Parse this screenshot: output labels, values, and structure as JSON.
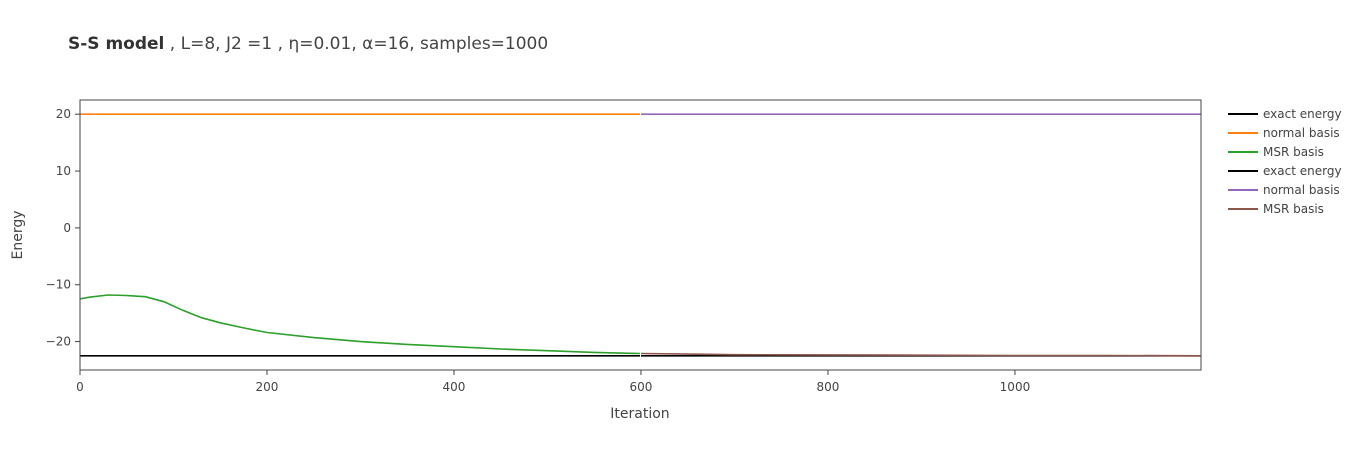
{
  "chart_data": {
    "type": "line",
    "title_bold": "S-S model",
    "title_rest": " , L=8, J2 =1 , η=0.01, α=16, samples=1000",
    "xlabel": "Iteration",
    "ylabel": "Energy",
    "xlim": [
      0,
      1199
    ],
    "ylim": [
      -25,
      22.5
    ],
    "x_ticks": [
      0,
      200,
      400,
      600,
      800,
      1000
    ],
    "y_ticks": [
      -20,
      -10,
      0,
      10,
      20
    ],
    "x_tick_labels": [
      "0",
      "200",
      "400",
      "600",
      "800",
      "1000"
    ],
    "y_tick_labels": [
      "−20",
      "−10",
      "0",
      "10",
      "20"
    ],
    "grid": false,
    "legend_position": "right",
    "series": [
      {
        "name": "exact energy",
        "color": "#000000",
        "x": [
          0,
          599
        ],
        "y": [
          -22.5,
          -22.5
        ]
      },
      {
        "name": "normal basis",
        "color": "#ff7f0e",
        "x": [
          0,
          599
        ],
        "y": [
          20,
          20
        ]
      },
      {
        "name": "MSR basis",
        "color": "#2ca02c",
        "x": [
          0,
          10,
          30,
          50,
          70,
          90,
          110,
          130,
          150,
          175,
          200,
          250,
          300,
          350,
          400,
          450,
          500,
          550,
          599
        ],
        "y": [
          -12.5,
          -12.2,
          -11.8,
          -11.9,
          -12.1,
          -13.0,
          -14.5,
          -15.8,
          -16.7,
          -17.6,
          -18.4,
          -19.3,
          -20.0,
          -20.5,
          -20.9,
          -21.3,
          -21.6,
          -21.9,
          -22.1
        ]
      },
      {
        "name": "exact energy",
        "color": "#000000",
        "x": [
          600,
          1199
        ],
        "y": [
          -22.5,
          -22.5
        ]
      },
      {
        "name": "normal basis",
        "color": "#9467bd",
        "x": [
          600,
          1199
        ],
        "y": [
          20,
          20
        ]
      },
      {
        "name": "MSR basis",
        "color": "#8c564b",
        "x": [
          600,
          650,
          700,
          800,
          900,
          1000,
          1100,
          1199
        ],
        "y": [
          -22.1,
          -22.2,
          -22.3,
          -22.35,
          -22.4,
          -22.45,
          -22.45,
          -22.5
        ]
      }
    ]
  }
}
